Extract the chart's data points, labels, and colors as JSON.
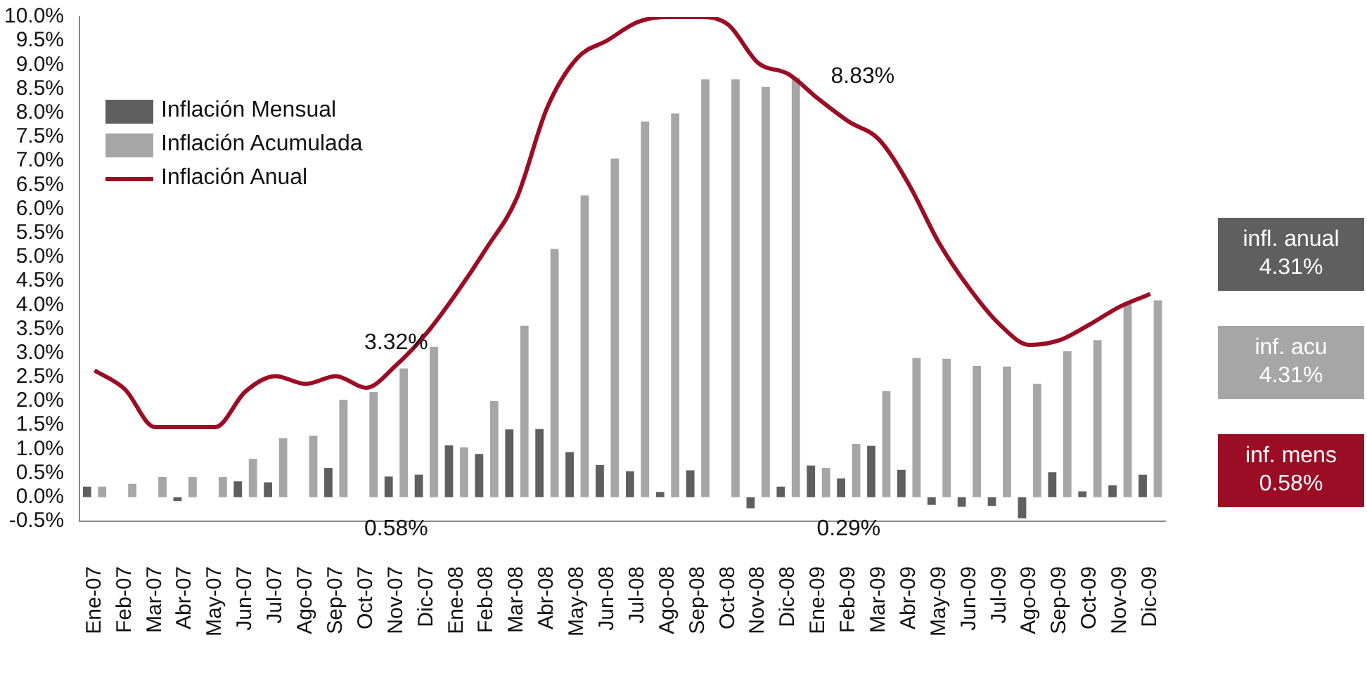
{
  "chart_data": {
    "type": "bar",
    "categories": [
      "Ene-07",
      "Feb-07",
      "Mar-07",
      "Abr-07",
      "May-07",
      "Jun-07",
      "Jul-07",
      "Ago-07",
      "Sep-07",
      "Oct-07",
      "Nov-07",
      "Dic-07",
      "Ene-08",
      "Feb-08",
      "Mar-08",
      "Abr-08",
      "May-08",
      "Jun-08",
      "Jul-08",
      "Ago-08",
      "Sep-08",
      "Oct-08",
      "Nov-08",
      "Dic-08",
      "Ene-09",
      "Feb-09",
      "Mar-09",
      "Abr-09",
      "May-09",
      "Jun-09",
      "Jul-09",
      "Ago-09",
      "Sep-09",
      "Oct-09",
      "Nov-09",
      "Dic-09"
    ],
    "series": [
      {
        "name": "Inflación Mensual",
        "color": "#5f5f5f",
        "values": [
          0.22,
          0,
          0,
          -0.08,
          0,
          0.33,
          0.31,
          0,
          0.61,
          0,
          0.43,
          0.47,
          1.08,
          0.9,
          1.41,
          1.42,
          0.94,
          0.67,
          0.54,
          0.11,
          0.56,
          0,
          -0.23,
          0.22,
          0.66,
          0.39,
          1.07,
          0.57,
          -0.16,
          -0.2,
          -0.18,
          -0.44,
          0.52,
          0.12,
          0.25,
          0.47
        ]
      },
      {
        "name": "Inflación Acumulada",
        "color": "#a6a6a6",
        "values": [
          0.22,
          0.28,
          0.42,
          0.42,
          0.42,
          0.8,
          1.23,
          1.28,
          2.03,
          2.19,
          2.68,
          3.13,
          1.04,
          2.0,
          3.57,
          5.17,
          6.28,
          7.05,
          7.82,
          7.99,
          8.7,
          8.7,
          8.54,
          8.73,
          0.61,
          1.11,
          2.21,
          2.9,
          2.88,
          2.73,
          2.72,
          2.36,
          3.04,
          3.27,
          4.04,
          4.1
        ]
      },
      {
        "name": "Inflación Anual",
        "type": "line",
        "color": "#9b0d25",
        "values": [
          2.64,
          2.25,
          1.46,
          1.46,
          1.46,
          2.2,
          2.52,
          2.36,
          2.52,
          2.28,
          2.75,
          3.41,
          4.25,
          5.19,
          6.23,
          8.1,
          9.14,
          9.51,
          9.89,
          10.0,
          10.0,
          9.84,
          9.04,
          8.81,
          8.29,
          7.82,
          7.45,
          6.51,
          5.29,
          4.35,
          3.6,
          3.17,
          3.27,
          3.6,
          3.97,
          4.23
        ]
      }
    ],
    "ylim": [
      -0.5,
      10
    ],
    "yticks": [
      {
        "value": -0.5,
        "label": "-0.5%"
      },
      {
        "value": 0,
        "label": "0.0%"
      },
      {
        "value": 0.5,
        "label": "0.5%"
      },
      {
        "value": 1,
        "label": "1.0%"
      },
      {
        "value": 1.5,
        "label": "1.5%"
      },
      {
        "value": 2,
        "label": "2.0%"
      },
      {
        "value": 2.5,
        "label": "2.5%"
      },
      {
        "value": 3,
        "label": "3.0%"
      },
      {
        "value": 3.5,
        "label": "3.5%"
      },
      {
        "value": 4,
        "label": "4.0%"
      },
      {
        "value": 4.5,
        "label": "4.5%"
      },
      {
        "value": 5,
        "label": "5.0%"
      },
      {
        "value": 5.5,
        "label": "5.5%"
      },
      {
        "value": 6,
        "label": "6.0%"
      },
      {
        "value": 6.5,
        "label": "6.5%"
      },
      {
        "value": 7,
        "label": "7.0%"
      },
      {
        "value": 7.5,
        "label": "7.5%"
      },
      {
        "value": 8,
        "label": "8.0%"
      },
      {
        "value": 8.5,
        "label": "8.5%"
      },
      {
        "value": 9,
        "label": "9.0%"
      },
      {
        "value": 9.5,
        "label": "9.5%"
      },
      {
        "value": 10,
        "label": "10.0%"
      }
    ],
    "annotations": [
      "3.32%",
      "8.83%",
      "0.58%",
      "0.29%",
      "infl. anual 4.31%",
      "inf. acu 4.31%",
      "inf. mens 0.58%"
    ],
    "legend": "top left",
    "grid": false,
    "marker": "none",
    "line_style": "solid"
  }
}
